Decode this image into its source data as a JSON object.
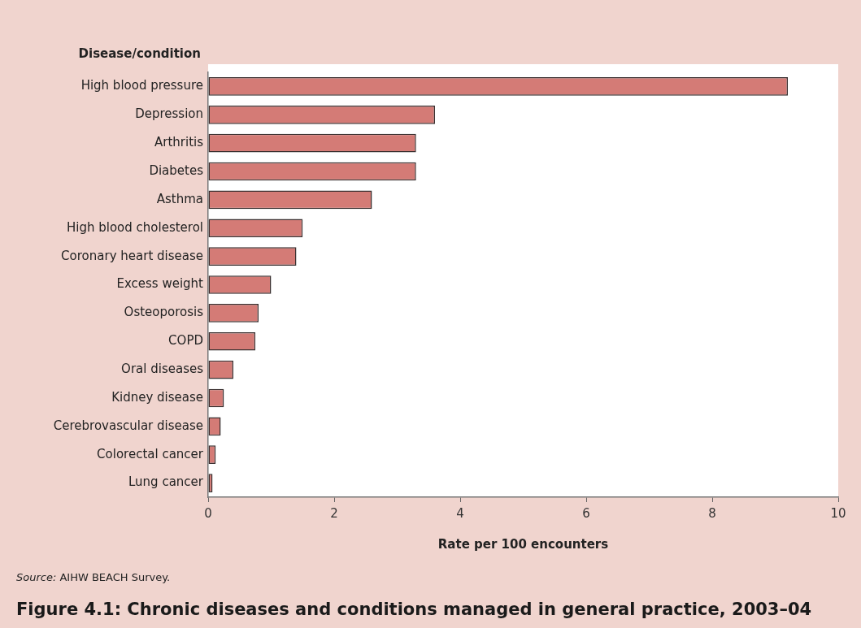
{
  "chart_data": {
    "type": "bar",
    "orientation": "horizontal",
    "title": "Figure 4.1: Chronic diseases and conditions managed in general practice, 2003–04",
    "xlabel": "Rate per 100 encounters",
    "ylabel": "Disease/condition",
    "categories": [
      "High blood pressure",
      "Depression",
      "Arthritis",
      "Diabetes",
      "Asthma",
      "High blood cholesterol",
      "Coronary heart disease",
      "Excess weight",
      "Osteoporosis",
      "COPD",
      "Oral diseases",
      "Kidney disease",
      "Cerebrovascular disease",
      "Colorectal cancer",
      "Lung cancer"
    ],
    "values": [
      9.2,
      3.6,
      3.3,
      3.3,
      2.6,
      1.5,
      1.4,
      1.0,
      0.8,
      0.75,
      0.4,
      0.25,
      0.2,
      0.12,
      0.07
    ],
    "color": "#d47b76",
    "xlim": [
      0,
      10
    ],
    "xticks": [
      0,
      2,
      4,
      6,
      8,
      10
    ],
    "annotations": [
      "Source: AIHW BEACH Survey."
    ]
  }
}
